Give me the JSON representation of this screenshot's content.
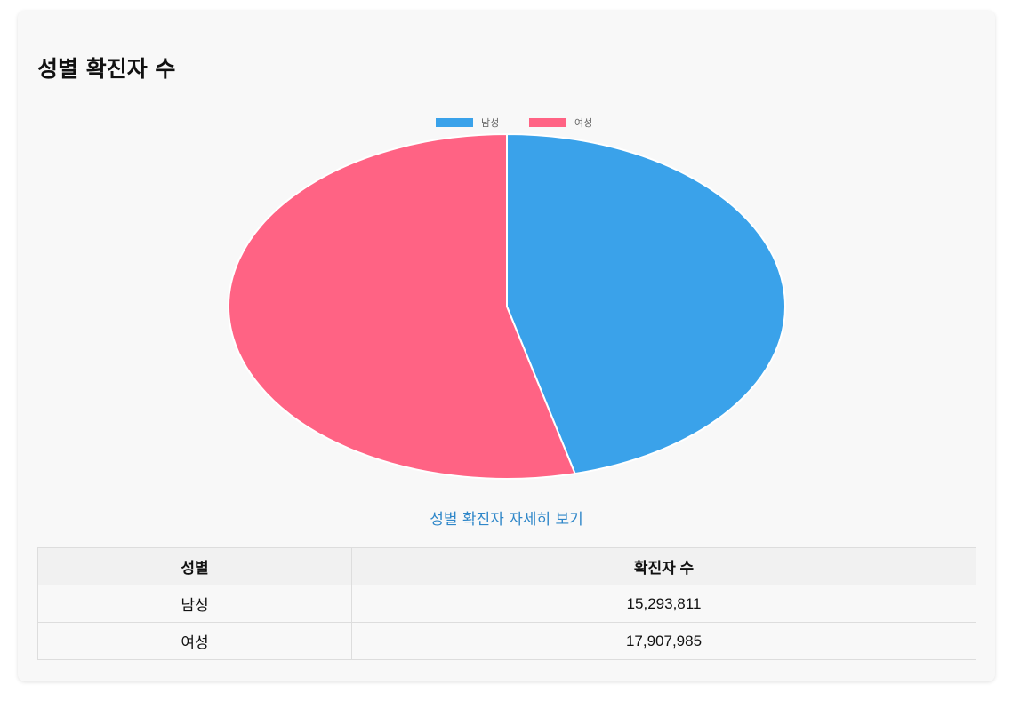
{
  "page": {
    "title": "성별 확진자 수",
    "detail_link": "성별 확진자 자세히 보기"
  },
  "colors": {
    "male": "#3aa2ea",
    "female": "#ff6384",
    "link": "#2f87c9"
  },
  "chart_data": {
    "type": "pie",
    "categories": [
      "남성",
      "여성"
    ],
    "values": [
      15293811,
      17907985
    ],
    "colors": [
      "#3aa2ea",
      "#ff6384"
    ],
    "legend_position": "top"
  },
  "table": {
    "headers": [
      "성별",
      "확진자 수"
    ],
    "rows": [
      [
        "남성",
        "15,293,811"
      ],
      [
        "여성",
        "17,907,985"
      ]
    ]
  }
}
